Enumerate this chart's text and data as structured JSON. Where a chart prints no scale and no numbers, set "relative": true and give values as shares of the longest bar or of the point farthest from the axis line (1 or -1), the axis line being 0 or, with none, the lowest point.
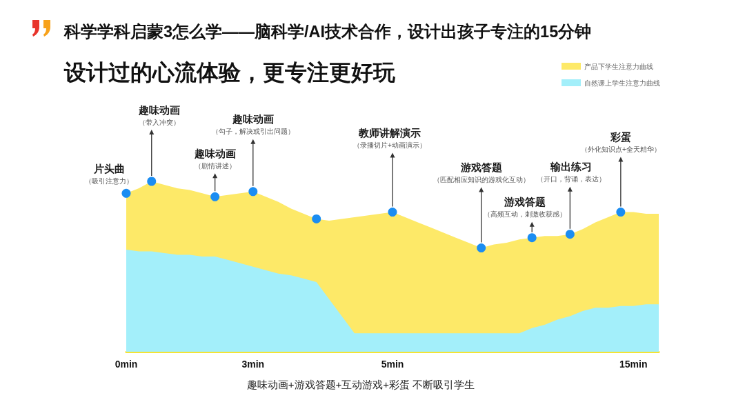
{
  "chart_data": {
    "type": "area",
    "title": "科学学科启蒙3怎么学——脑科学/AI技术合作，设计出孩子专注的15分钟",
    "subtitle": "设计过的心流体验，更专注更好玩",
    "relative": true,
    "legend": "top right",
    "categories": [
      "0min",
      null,
      null,
      null,
      null,
      null,
      null,
      null,
      null,
      null,
      "3min",
      null,
      null,
      null,
      null,
      null,
      null,
      null,
      null,
      null,
      null,
      "5min",
      null,
      null,
      null,
      null,
      null,
      null,
      null,
      null,
      null,
      null,
      null,
      null,
      null,
      null,
      null,
      null,
      null,
      null,
      "15min",
      null,
      null
    ],
    "series": [
      {
        "name": "产品下学生注意力曲线",
        "color": "#fde968",
        "values": [
          0.93,
          0.96,
          1.0,
          0.98,
          0.96,
          0.95,
          0.93,
          0.91,
          0.92,
          0.93,
          0.94,
          0.91,
          0.88,
          0.84,
          0.81,
          0.78,
          0.77,
          0.78,
          0.79,
          0.8,
          0.81,
          0.82,
          0.79,
          0.76,
          0.73,
          0.7,
          0.67,
          0.64,
          0.61,
          0.63,
          0.64,
          0.66,
          0.67,
          0.68,
          0.68,
          0.69,
          0.72,
          0.76,
          0.79,
          0.82,
          0.82,
          0.81,
          0.81
        ]
      },
      {
        "name": "自然课上学生注意力曲线",
        "color": "#a3effa",
        "values": [
          0.6,
          0.59,
          0.59,
          0.58,
          0.57,
          0.57,
          0.56,
          0.56,
          0.54,
          0.52,
          0.5,
          0.48,
          0.46,
          0.45,
          0.43,
          0.41,
          0.31,
          0.21,
          0.11,
          0.11,
          0.11,
          0.11,
          0.11,
          0.11,
          0.11,
          0.11,
          0.11,
          0.11,
          0.11,
          0.11,
          0.11,
          0.11,
          0.14,
          0.16,
          0.19,
          0.21,
          0.24,
          0.26,
          0.26,
          0.27,
          0.27,
          0.28,
          0.28
        ]
      },
      {
        "type": "scatter",
        "color": "#1b8df2",
        "values": [
          0.93,
          null,
          1.0,
          null,
          null,
          null,
          null,
          0.91,
          null,
          null,
          0.94,
          null,
          null,
          null,
          null,
          0.78,
          null,
          null,
          null,
          null,
          null,
          0.82,
          null,
          null,
          null,
          null,
          null,
          null,
          0.61,
          null,
          null,
          null,
          0.67,
          null,
          null,
          0.69,
          null,
          null,
          null,
          0.82,
          null,
          null,
          null
        ]
      }
    ],
    "annotations": [
      "片头曲",
      "（吸引注意力）",
      "趣味动画",
      "（带入冲突）",
      "趣味动画",
      "（剧情讲述）",
      "趣味动画",
      "（勾子，解决或引出问题）",
      "教师讲解演示",
      "（录播切片+动画演示）",
      "游戏答题",
      "（匹配相应知识的游戏化互动）",
      "游戏答题",
      "（高频互动，刺激收获感）",
      "输出练习",
      "（开口，背诵，表达）",
      "彩蛋",
      "（外化知识点+全天精华）",
      "趣味动画+游戏答题+互动游戏+彩蛋 不断吸引学生"
    ]
  }
}
